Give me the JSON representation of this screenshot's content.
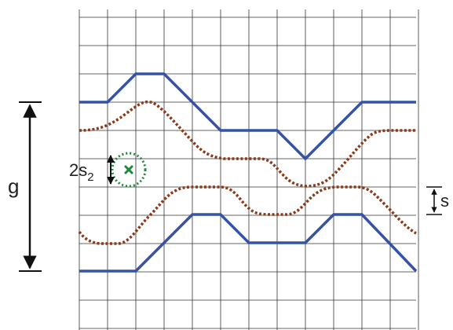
{
  "labels": {
    "g": "g",
    "two_s2_main": "2s",
    "two_s2_sub": "2",
    "s": "s"
  },
  "colors": {
    "grid": "#333333",
    "solid_track": "#3553a6",
    "dotted_track": "#8b3a1a",
    "marker": "#1a8a3a",
    "arrow": "#111111"
  },
  "icons": {
    "marker": "x-mark-icon"
  }
}
